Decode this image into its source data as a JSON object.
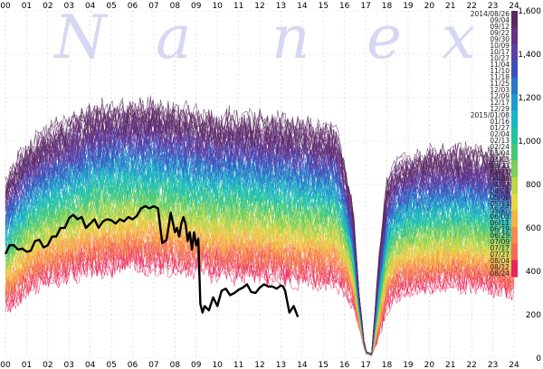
{
  "watermark": {
    "letters": [
      "N",
      "a",
      "n",
      "e",
      "x"
    ]
  },
  "chart_data": {
    "type": "line",
    "title": "",
    "xlabel": "",
    "ylabel": "",
    "x_ticks": [
      "00",
      "01",
      "02",
      "03",
      "04",
      "05",
      "06",
      "07",
      "08",
      "09",
      "10",
      "11",
      "12",
      "13",
      "14",
      "15",
      "16",
      "17",
      "18",
      "19",
      "20",
      "21",
      "22",
      "23",
      "24"
    ],
    "y_ticks": [
      0,
      200,
      400,
      600,
      800,
      1000,
      1200,
      1400,
      1600
    ],
    "y_tick_labels": [
      "0",
      "200",
      "400",
      "600",
      "800",
      "1,000",
      "1,200",
      "1,400",
      "1,600"
    ],
    "xlim": [
      0,
      24
    ],
    "ylim": [
      0,
      1600
    ],
    "grid": true,
    "series_note": "colour scale labels on right side",
    "colorbar_labels": [
      "2014/08/26",
      "09/04",
      "09/12",
      "09/22",
      "09/30",
      "10/09",
      "10/17",
      "10/27",
      "11/04",
      "11/10",
      "11/18",
      "11/25",
      "12/03",
      "12/09",
      "12/17",
      "12/29",
      "2015/01/08",
      "01/16",
      "01/27",
      "02/04",
      "02/13",
      "02/24",
      "03/04",
      "03/13",
      "03/23",
      "03/31",
      "04/09",
      "04/17",
      "04/24",
      "05/06",
      "05/14",
      "05/22",
      "06/03",
      "06/11",
      "06/19",
      "06/29",
      "07/09",
      "07/17",
      "07/27",
      "08/04",
      "08/12",
      "08/24"
    ],
    "colorbar_colors": [
      "#5a2a5e",
      "#6a2f86",
      "#5a3fa8",
      "#3b4fbf",
      "#2a73c8",
      "#1e9bd0",
      "#16b8c8",
      "#22c4a0",
      "#44c878",
      "#7ccf5a",
      "#b8d848",
      "#e8d840",
      "#f6b444",
      "#f98a4e",
      "#f36a56",
      "#e8245a"
    ],
    "highlight_series": {
      "color": "#000000",
      "x": [
        0.0,
        0.2,
        0.4,
        0.6,
        0.8,
        1.0,
        1.2,
        1.4,
        1.6,
        1.8,
        2.0,
        2.2,
        2.4,
        2.6,
        2.8,
        3.0,
        3.2,
        3.4,
        3.6,
        3.8,
        4.0,
        4.2,
        4.4,
        4.6,
        4.8,
        5.0,
        5.2,
        5.4,
        5.6,
        5.8,
        6.0,
        6.2,
        6.4,
        6.6,
        6.8,
        7.0,
        7.2,
        7.4,
        7.6,
        7.8,
        8.0,
        8.1,
        8.2,
        8.3,
        8.4,
        8.5,
        8.6,
        8.7,
        8.8,
        8.9,
        9.0,
        9.1,
        9.2,
        9.3,
        9.4,
        9.6,
        9.8,
        10.0,
        10.2,
        10.4,
        10.6,
        10.8,
        11.0,
        11.2,
        11.4,
        11.6,
        11.8,
        12.0,
        12.2,
        12.4,
        12.6,
        12.8,
        13.0,
        13.1,
        13.2,
        13.3,
        13.4,
        13.6,
        13.8
      ],
      "y": [
        480,
        520,
        520,
        500,
        505,
        490,
        495,
        540,
        545,
        510,
        520,
        560,
        560,
        600,
        600,
        645,
        660,
        640,
        650,
        600,
        620,
        640,
        600,
        630,
        640,
        635,
        620,
        640,
        630,
        650,
        640,
        655,
        690,
        700,
        690,
        700,
        690,
        530,
        545,
        670,
        580,
        600,
        560,
        620,
        650,
        620,
        540,
        580,
        500,
        580,
        520,
        550,
        250,
        210,
        240,
        220,
        280,
        240,
        310,
        320,
        290,
        300,
        315,
        325,
        340,
        305,
        300,
        325,
        340,
        330,
        330,
        320,
        335,
        330,
        310,
        260,
        210,
        240,
        190
      ]
    },
    "band_profile": {
      "x": [
        0,
        0.5,
        1,
        2,
        3,
        4,
        5,
        6,
        7,
        8,
        9,
        10,
        11,
        12,
        13,
        14,
        15,
        15.6,
        16,
        16.4,
        16.7,
        17.0,
        17.3,
        17.6,
        18.0,
        18.4,
        19,
        20,
        21,
        22,
        23,
        24
      ],
      "low": [
        140,
        170,
        210,
        250,
        270,
        290,
        300,
        310,
        310,
        300,
        290,
        280,
        270,
        270,
        260,
        250,
        250,
        250,
        220,
        180,
        120,
        20,
        10,
        40,
        140,
        200,
        220,
        230,
        240,
        230,
        220,
        200
      ],
      "high": [
        900,
        1000,
        1080,
        1150,
        1200,
        1250,
        1280,
        1280,
        1280,
        1260,
        1230,
        1220,
        1230,
        1210,
        1200,
        1190,
        1160,
        1150,
        1000,
        760,
        300,
        40,
        30,
        500,
        900,
        980,
        1020,
        1040,
        1050,
        1050,
        1040,
        960
      ]
    }
  }
}
